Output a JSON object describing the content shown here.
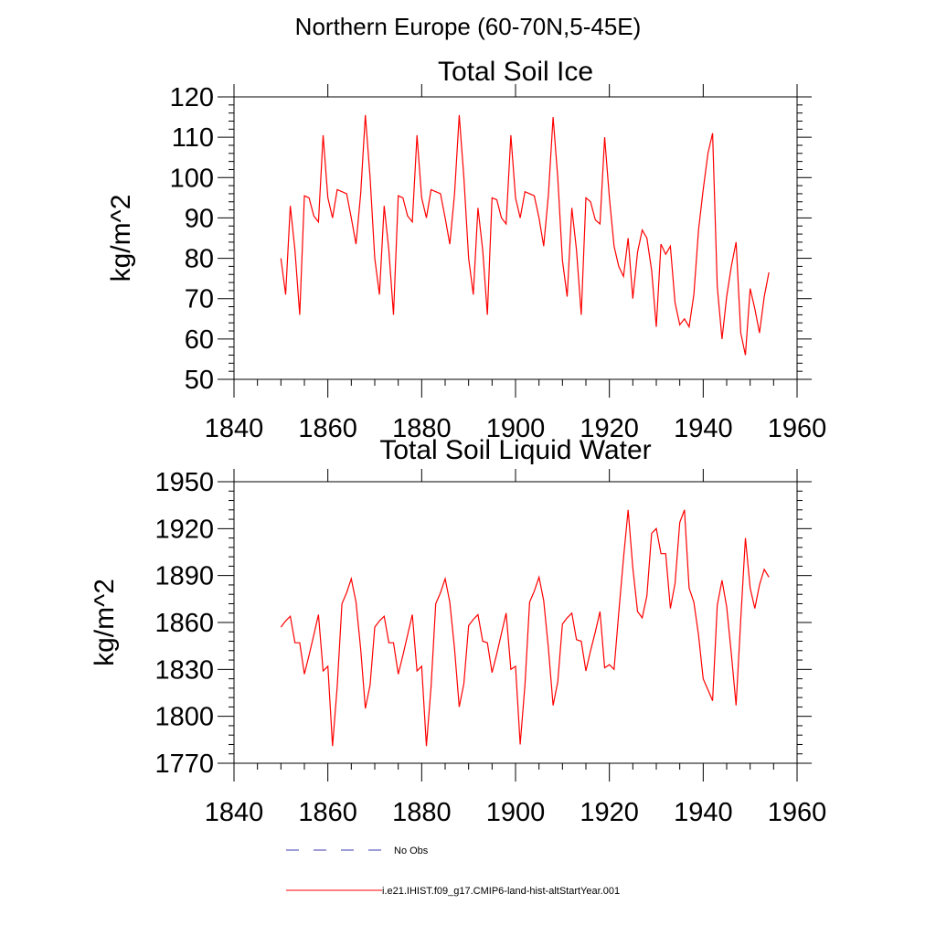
{
  "figure_title": "Northern Europe (60-70N,5-45E)",
  "colors": {
    "model": "#ff0000",
    "obs": "#3b3bb0",
    "axes": "#000000"
  },
  "chart_data": [
    {
      "type": "line",
      "title": "Total Soil Ice",
      "xlabel": "",
      "ylabel": "kg/m^2",
      "xlim": [
        1840,
        1960
      ],
      "ylim": [
        50,
        120
      ],
      "xticks": [
        1840,
        1860,
        1880,
        1900,
        1920,
        1940,
        1960
      ],
      "yticks": [
        50,
        60,
        70,
        80,
        90,
        100,
        110,
        120
      ],
      "x_start": 1850,
      "series": [
        {
          "name": "i.e21.IHIST.f09_g17.CMIP6-land-hist-altStartYear.001",
          "values": [
            80,
            71,
            93,
            82,
            66,
            95.5,
            95,
            90.5,
            89,
            110.5,
            95,
            90,
            97,
            96.5,
            96,
            90,
            83.5,
            96,
            115.5,
            100,
            80,
            71,
            93,
            82,
            66,
            95.5,
            95,
            90.5,
            89,
            110.5,
            95,
            90,
            97,
            96.5,
            96,
            90,
            83.5,
            96,
            115.5,
            100,
            80,
            71,
            92.5,
            82,
            66,
            95,
            94.5,
            90,
            88.5,
            110.5,
            95,
            90,
            96.5,
            96,
            95.5,
            90,
            83,
            95.5,
            115,
            100,
            79.5,
            70.5,
            92.5,
            82,
            66,
            95,
            94,
            89.5,
            88.5,
            110,
            95,
            83,
            78,
            75.5,
            85,
            70,
            81.5,
            87,
            85,
            77,
            63,
            83.5,
            81,
            83,
            69,
            63.5,
            65,
            63,
            71,
            87,
            97,
            106,
            111,
            73,
            60,
            70.5,
            78,
            84,
            61.5,
            56,
            72.5,
            67.5,
            61.5,
            70.5,
            76.5
          ]
        }
      ]
    },
    {
      "type": "line",
      "title": "Total Soil Liquid Water",
      "xlabel": "",
      "ylabel": "kg/m^2",
      "xlim": [
        1840,
        1960
      ],
      "ylim": [
        1770,
        1950
      ],
      "xticks": [
        1840,
        1860,
        1880,
        1900,
        1920,
        1940,
        1960
      ],
      "yticks": [
        1770,
        1800,
        1830,
        1860,
        1890,
        1920,
        1950
      ],
      "x_start": 1850,
      "series": [
        {
          "name": "i.e21.IHIST.f09_g17.CMIP6-land-hist-altStartYear.001",
          "values": [
            1857,
            1861,
            1864,
            1847,
            1847,
            1827,
            1839,
            1852,
            1865,
            1829,
            1832,
            1781,
            1819,
            1872,
            1879,
            1888,
            1873,
            1843,
            1805,
            1820,
            1857,
            1861,
            1864,
            1847,
            1847,
            1827,
            1839,
            1852,
            1865,
            1829,
            1832,
            1781,
            1819,
            1872,
            1879,
            1888,
            1873,
            1843,
            1806,
            1821,
            1858,
            1862,
            1865,
            1848,
            1847,
            1828,
            1840,
            1853,
            1866,
            1830,
            1832,
            1782,
            1820,
            1873,
            1880,
            1889,
            1874,
            1844,
            1807,
            1822,
            1859,
            1863,
            1866,
            1849,
            1848,
            1829,
            1842,
            1854,
            1867,
            1831,
            1833,
            1830,
            1866,
            1901,
            1932,
            1895,
            1867,
            1863,
            1877,
            1917,
            1920,
            1904,
            1904,
            1869,
            1885,
            1924,
            1932,
            1882,
            1873,
            1852,
            1824,
            1817,
            1810,
            1871,
            1887,
            1870,
            1840,
            1807,
            1862,
            1914,
            1882,
            1869,
            1884,
            1894,
            1889
          ]
        }
      ]
    }
  ],
  "legend": {
    "placement": "bottom-left",
    "entries": [
      {
        "label": "No Obs",
        "style": "dashed"
      },
      {
        "label": "i.e21.IHIST.f09_g17.CMIP6-land-hist-altStartYear.001",
        "style": "solid"
      }
    ]
  }
}
